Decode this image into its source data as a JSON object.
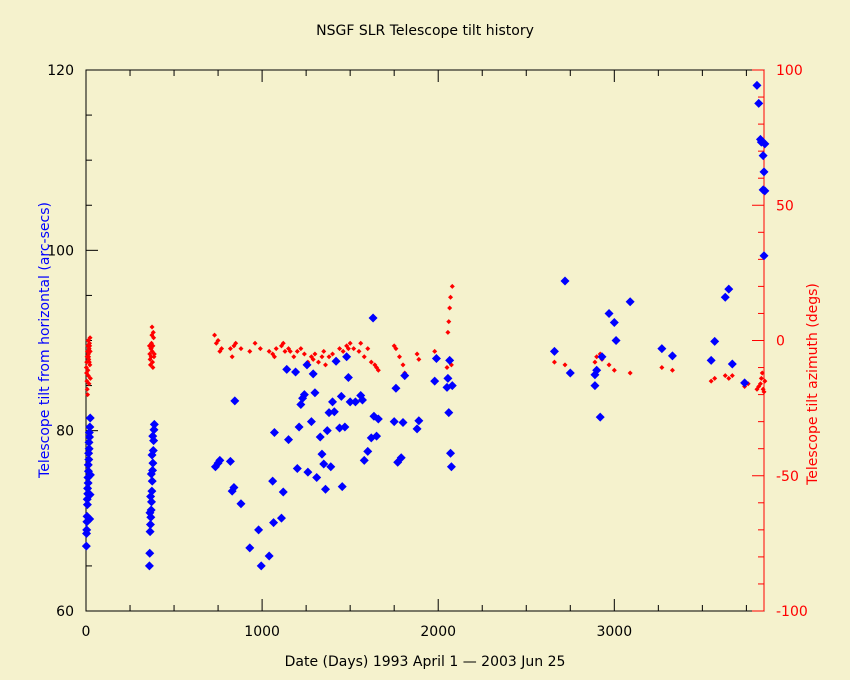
{
  "colors": {
    "background": "#f5f2cd",
    "axis": "#000000",
    "left_series": "#0000ff",
    "right_series": "#ff0000",
    "title_text": "#000000"
  },
  "chart_data": {
    "type": "scatter",
    "title": "NSGF SLR Telescope tilt history",
    "xlabel": "Date (Days) 1993 April 1 — 2003 Jun 25",
    "ylabel": "Telescope tilt from horizontal (arc-secs)",
    "y2label": "Telescope tilt azimuth (degs)",
    "xlim": [
      0,
      3850
    ],
    "ylim": [
      60,
      120
    ],
    "y2lim": [
      -100,
      100
    ],
    "x_ticks": [
      "0",
      "1000",
      "2000",
      "3000"
    ],
    "x_tick_values": [
      0,
      1000,
      2000,
      3000
    ],
    "y_ticks": [
      "60",
      "80",
      "100",
      "120"
    ],
    "y_tick_values": [
      60,
      80,
      100,
      120
    ],
    "y2_ticks": [
      "-100",
      "-50",
      "0",
      "50",
      "100"
    ],
    "y2_tick_values": [
      -100,
      -50,
      0,
      50,
      100
    ],
    "grid": false,
    "series": [
      {
        "axis": "left",
        "marker": "diamond",
        "points": [
          [
            2,
            67.2
          ],
          [
            4,
            69
          ],
          [
            6,
            70.5
          ],
          [
            8,
            71.8
          ],
          [
            10,
            73
          ],
          [
            12,
            74.2
          ],
          [
            14,
            75.5
          ],
          [
            16,
            76.8
          ],
          [
            18,
            78
          ],
          [
            20,
            79.3
          ],
          [
            22,
            80.4
          ],
          [
            24,
            81.4
          ],
          [
            3,
            68.6
          ],
          [
            5,
            69.9
          ],
          [
            7,
            72.4
          ],
          [
            9,
            73.6
          ],
          [
            11,
            74.8
          ],
          [
            13,
            76.2
          ],
          [
            15,
            77.5
          ],
          [
            17,
            78.7
          ],
          [
            19,
            79.8
          ],
          [
            21,
            70.2
          ],
          [
            23,
            72.9
          ],
          [
            25,
            75.1
          ],
          [
            360,
            65
          ],
          [
            362,
            66.4
          ],
          [
            364,
            68.8
          ],
          [
            366,
            69.6
          ],
          [
            368,
            70.4
          ],
          [
            370,
            71.2
          ],
          [
            372,
            72.1
          ],
          [
            374,
            73.3
          ],
          [
            376,
            74.4
          ],
          [
            378,
            75.6
          ],
          [
            380,
            76.4
          ],
          [
            382,
            77.8
          ],
          [
            384,
            78.9
          ],
          [
            386,
            80.1
          ],
          [
            388,
            80.7
          ],
          [
            363,
            70.9
          ],
          [
            367,
            72.7
          ],
          [
            371,
            75.2
          ],
          [
            375,
            77.3
          ],
          [
            379,
            79.4
          ],
          [
            735,
            76
          ],
          [
            750,
            76.4
          ],
          [
            760,
            76.7
          ],
          [
            820,
            76.6
          ],
          [
            830,
            73.3
          ],
          [
            840,
            73.7
          ],
          [
            845,
            83.3
          ],
          [
            880,
            71.9
          ],
          [
            930,
            67
          ],
          [
            980,
            69
          ],
          [
            995,
            65
          ],
          [
            1040,
            66.1
          ],
          [
            1060,
            74.4
          ],
          [
            1065,
            69.8
          ],
          [
            1070,
            79.8
          ],
          [
            1110,
            70.3
          ],
          [
            1120,
            73.2
          ],
          [
            1140,
            86.8
          ],
          [
            1150,
            79
          ],
          [
            1190,
            86.5
          ],
          [
            1200,
            75.8
          ],
          [
            1210,
            80.4
          ],
          [
            1220,
            82.9
          ],
          [
            1230,
            83.6
          ],
          [
            1240,
            84
          ],
          [
            1255,
            87.3
          ],
          [
            1260,
            75.4
          ],
          [
            1280,
            81
          ],
          [
            1290,
            86.3
          ],
          [
            1300,
            84.2
          ],
          [
            1310,
            74.8
          ],
          [
            1330,
            79.3
          ],
          [
            1340,
            77.4
          ],
          [
            1350,
            76.3
          ],
          [
            1360,
            73.5
          ],
          [
            1370,
            80
          ],
          [
            1380,
            82
          ],
          [
            1390,
            76
          ],
          [
            1400,
            83.2
          ],
          [
            1410,
            82.1
          ],
          [
            1420,
            87.7
          ],
          [
            1440,
            80.3
          ],
          [
            1450,
            83.8
          ],
          [
            1455,
            73.8
          ],
          [
            1470,
            80.4
          ],
          [
            1480,
            88.2
          ],
          [
            1490,
            85.9
          ],
          [
            1500,
            83.2
          ],
          [
            1530,
            83.2
          ],
          [
            1560,
            83.9
          ],
          [
            1570,
            83.4
          ],
          [
            1580,
            76.7
          ],
          [
            1600,
            77.7
          ],
          [
            1620,
            79.2
          ],
          [
            1630,
            92.5
          ],
          [
            1635,
            81.6
          ],
          [
            1650,
            79.4
          ],
          [
            1660,
            81.3
          ],
          [
            1750,
            81
          ],
          [
            1760,
            84.7
          ],
          [
            1770,
            76.5
          ],
          [
            1790,
            77
          ],
          [
            1800,
            80.9
          ],
          [
            1810,
            86.1
          ],
          [
            1880,
            80.2
          ],
          [
            1890,
            81.1
          ],
          [
            1980,
            85.5
          ],
          [
            1990,
            88
          ],
          [
            2050,
            84.8
          ],
          [
            2055,
            85.8
          ],
          [
            2060,
            82
          ],
          [
            2065,
            87.8
          ],
          [
            2070,
            77.5
          ],
          [
            2075,
            76
          ],
          [
            2080,
            85
          ],
          [
            2660,
            88.8
          ],
          [
            2720,
            96.6
          ],
          [
            2750,
            86.4
          ],
          [
            2890,
            85
          ],
          [
            2890,
            86.2
          ],
          [
            2900,
            86.7
          ],
          [
            2920,
            81.5
          ],
          [
            2930,
            88.2
          ],
          [
            2970,
            93
          ],
          [
            3000,
            92
          ],
          [
            3010,
            90
          ],
          [
            3090,
            94.3
          ],
          [
            3270,
            89.1
          ],
          [
            3330,
            88.3
          ],
          [
            3550,
            87.8
          ],
          [
            3570,
            89.9
          ],
          [
            3630,
            94.8
          ],
          [
            3650,
            95.7
          ],
          [
            3670,
            87.4
          ],
          [
            3740,
            85.3
          ],
          [
            3810,
            118.3
          ],
          [
            3820,
            116.3
          ],
          [
            3830,
            112.3
          ],
          [
            3835,
            112
          ],
          [
            3845,
            110.5
          ],
          [
            3850,
            108.7
          ],
          [
            3845,
            106.7
          ],
          [
            3855,
            106.6
          ],
          [
            3850,
            99.4
          ],
          [
            3855,
            111.8
          ]
        ]
      },
      {
        "axis": "right",
        "marker": "small-diamond",
        "points": [
          [
            2,
            -10
          ],
          [
            4,
            -8
          ],
          [
            6,
            -6
          ],
          [
            8,
            -4
          ],
          [
            10,
            -2
          ],
          [
            12,
            0
          ],
          [
            14,
            -5
          ],
          [
            16,
            -7
          ],
          [
            18,
            -3
          ],
          [
            20,
            -1
          ],
          [
            22,
            -9
          ],
          [
            24,
            -4
          ],
          [
            3,
            -12
          ],
          [
            5,
            -15
          ],
          [
            7,
            -18
          ],
          [
            9,
            -20
          ],
          [
            11,
            -11
          ],
          [
            13,
            -13
          ],
          [
            15,
            -6
          ],
          [
            17,
            -16
          ],
          [
            19,
            -8
          ],
          [
            21,
            -2
          ],
          [
            23,
            1
          ],
          [
            25,
            -14
          ],
          [
            360,
            -2
          ],
          [
            362,
            -5
          ],
          [
            364,
            -7
          ],
          [
            366,
            -9
          ],
          [
            368,
            -3
          ],
          [
            370,
            -6
          ],
          [
            372,
            -1
          ],
          [
            374,
            2
          ],
          [
            376,
            -4
          ],
          [
            378,
            -8
          ],
          [
            380,
            -10
          ],
          [
            382,
            3
          ],
          [
            384,
            1
          ],
          [
            386,
            -6
          ],
          [
            388,
            -5
          ],
          [
            370,
            -3
          ],
          [
            375,
            5
          ],
          [
            380,
            -2
          ],
          [
            730,
            2
          ],
          [
            740,
            -1
          ],
          [
            750,
            0
          ],
          [
            760,
            -4
          ],
          [
            770,
            -3
          ],
          [
            820,
            -3
          ],
          [
            830,
            -6
          ],
          [
            840,
            -2
          ],
          [
            850,
            -1
          ],
          [
            880,
            -3
          ],
          [
            930,
            -4
          ],
          [
            960,
            -1
          ],
          [
            990,
            -3
          ],
          [
            1040,
            -4
          ],
          [
            1060,
            -5
          ],
          [
            1070,
            -6
          ],
          [
            1080,
            -3
          ],
          [
            1110,
            -2
          ],
          [
            1120,
            -1
          ],
          [
            1130,
            -4
          ],
          [
            1150,
            -3
          ],
          [
            1160,
            -4
          ],
          [
            1180,
            -6
          ],
          [
            1200,
            -4
          ],
          [
            1220,
            -3
          ],
          [
            1240,
            -5
          ],
          [
            1260,
            -8
          ],
          [
            1280,
            -6
          ],
          [
            1290,
            -7
          ],
          [
            1300,
            -5
          ],
          [
            1320,
            -8
          ],
          [
            1340,
            -6
          ],
          [
            1350,
            -4
          ],
          [
            1360,
            -9
          ],
          [
            1380,
            -6
          ],
          [
            1400,
            -5
          ],
          [
            1420,
            -7
          ],
          [
            1440,
            -3
          ],
          [
            1460,
            -4
          ],
          [
            1480,
            -2
          ],
          [
            1490,
            -3
          ],
          [
            1500,
            -1
          ],
          [
            1520,
            -3
          ],
          [
            1550,
            -4
          ],
          [
            1560,
            -1
          ],
          [
            1580,
            -6
          ],
          [
            1600,
            -3
          ],
          [
            1620,
            -8
          ],
          [
            1640,
            -9
          ],
          [
            1650,
            -10
          ],
          [
            1660,
            -11
          ],
          [
            1750,
            -2
          ],
          [
            1760,
            -3
          ],
          [
            1780,
            -6
          ],
          [
            1800,
            -9
          ],
          [
            1810,
            -12
          ],
          [
            1880,
            -5
          ],
          [
            1890,
            -7
          ],
          [
            1980,
            -4
          ],
          [
            1990,
            -7
          ],
          [
            2050,
            -10
          ],
          [
            2055,
            3
          ],
          [
            2060,
            7
          ],
          [
            2065,
            12
          ],
          [
            2070,
            16
          ],
          [
            2075,
            -9
          ],
          [
            2080,
            20
          ],
          [
            2660,
            -8
          ],
          [
            2720,
            -9
          ],
          [
            2750,
            -12
          ],
          [
            2890,
            -8
          ],
          [
            2900,
            -6
          ],
          [
            2920,
            -5
          ],
          [
            2930,
            -7
          ],
          [
            2970,
            -9
          ],
          [
            3000,
            -11
          ],
          [
            3090,
            -12
          ],
          [
            3270,
            -10
          ],
          [
            3330,
            -11
          ],
          [
            3550,
            -15
          ],
          [
            3570,
            -14
          ],
          [
            3630,
            -13
          ],
          [
            3650,
            -14
          ],
          [
            3670,
            -13
          ],
          [
            3740,
            -17
          ],
          [
            3760,
            -16
          ],
          [
            3810,
            -18
          ],
          [
            3820,
            -17
          ],
          [
            3830,
            -16
          ],
          [
            3840,
            -12
          ],
          [
            3850,
            -19
          ],
          [
            3855,
            -15
          ],
          [
            3845,
            -18
          ],
          [
            3835,
            -14
          ]
        ]
      }
    ]
  }
}
